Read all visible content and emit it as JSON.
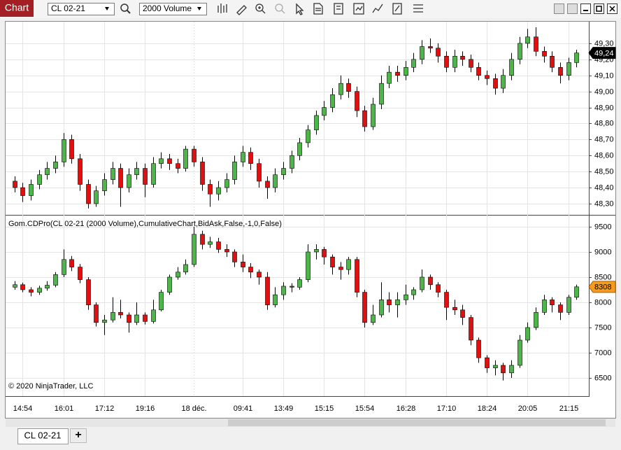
{
  "toolbar": {
    "title": "Chart",
    "instrument": "CL 02-21",
    "interval": "2000 Volume"
  },
  "tabs": {
    "active": "CL 02-21",
    "add": "+"
  },
  "chart_data": [
    {
      "type": "candlestick",
      "open": [
        48.44,
        48.4,
        48.35,
        48.42,
        48.48,
        48.52,
        48.56,
        48.7,
        48.58,
        48.42,
        48.3,
        48.38,
        48.45,
        48.52,
        48.4,
        48.48,
        48.52,
        48.42,
        48.55,
        48.58,
        48.55,
        48.52,
        48.64,
        48.56,
        48.42,
        48.36,
        48.4,
        48.45,
        48.56,
        48.62,
        48.55,
        48.44,
        48.4,
        48.48,
        48.52,
        48.6,
        48.68,
        48.76,
        48.85,
        48.9,
        48.98,
        49.05,
        49.0,
        48.88,
        48.78,
        48.92,
        49.05,
        49.12,
        49.1,
        49.15,
        49.2,
        49.28,
        49.27,
        49.22,
        49.15,
        49.22,
        49.2,
        49.15,
        49.1,
        49.08,
        49.02,
        49.1,
        49.2,
        49.3,
        49.34,
        49.25,
        49.22,
        49.15,
        49.1,
        49.18
      ],
      "high": [
        48.47,
        48.43,
        48.45,
        48.51,
        48.56,
        48.6,
        48.74,
        48.73,
        48.61,
        48.45,
        48.41,
        48.49,
        48.56,
        48.55,
        48.52,
        48.56,
        48.55,
        48.59,
        48.62,
        48.61,
        48.58,
        48.66,
        48.66,
        48.59,
        48.45,
        48.44,
        48.49,
        48.6,
        48.66,
        48.65,
        48.58,
        48.47,
        48.52,
        48.56,
        48.63,
        48.71,
        48.79,
        48.88,
        48.94,
        49.02,
        49.1,
        49.08,
        49.03,
        48.91,
        48.96,
        49.1,
        49.16,
        49.16,
        49.19,
        49.24,
        49.32,
        49.33,
        49.3,
        49.25,
        49.26,
        49.25,
        49.23,
        49.18,
        49.13,
        49.11,
        49.14,
        49.24,
        49.34,
        49.39,
        49.4,
        49.28,
        49.25,
        49.18,
        49.21,
        49.26
      ],
      "low": [
        48.37,
        48.31,
        48.32,
        48.39,
        48.45,
        48.49,
        48.53,
        48.55,
        48.38,
        48.27,
        48.28,
        48.35,
        48.42,
        48.28,
        48.37,
        48.45,
        48.34,
        48.4,
        48.52,
        48.51,
        48.49,
        48.5,
        48.53,
        48.38,
        48.28,
        48.32,
        48.37,
        48.42,
        48.53,
        48.51,
        48.4,
        48.33,
        48.37,
        48.45,
        48.49,
        48.57,
        48.65,
        48.73,
        48.82,
        48.87,
        48.95,
        48.96,
        48.84,
        48.75,
        48.76,
        48.89,
        49.02,
        49.06,
        49.07,
        49.12,
        49.17,
        49.24,
        49.18,
        49.12,
        49.12,
        49.16,
        49.12,
        49.07,
        49.04,
        48.98,
        48.99,
        49.07,
        49.17,
        49.27,
        49.22,
        49.18,
        49.12,
        49.05,
        49.07,
        49.15
      ],
      "close": [
        48.4,
        48.35,
        48.42,
        48.48,
        48.52,
        48.56,
        48.7,
        48.58,
        48.42,
        48.3,
        48.38,
        48.45,
        48.52,
        48.4,
        48.48,
        48.52,
        48.42,
        48.55,
        48.58,
        48.55,
        48.52,
        48.64,
        48.56,
        48.42,
        48.36,
        48.4,
        48.45,
        48.56,
        48.62,
        48.55,
        48.44,
        48.4,
        48.48,
        48.52,
        48.6,
        48.68,
        48.76,
        48.85,
        48.9,
        48.98,
        49.05,
        49.0,
        48.88,
        48.78,
        48.92,
        49.05,
        49.12,
        49.1,
        49.15,
        49.2,
        49.28,
        49.27,
        49.22,
        49.15,
        49.22,
        49.2,
        49.15,
        49.1,
        49.08,
        49.02,
        49.1,
        49.2,
        49.3,
        49.34,
        49.25,
        49.22,
        49.15,
        49.1,
        49.18,
        49.24
      ],
      "up_color": "#4cb648",
      "down_color": "#e01010",
      "ylim": [
        48.23,
        49.435
      ],
      "yticks": [
        {
          "value": 48.3,
          "label": "48,30"
        },
        {
          "value": 48.4,
          "label": "48,40"
        },
        {
          "value": 48.5,
          "label": "48,50"
        },
        {
          "value": 48.6,
          "label": "48,60"
        },
        {
          "value": 48.7,
          "label": "48,70"
        },
        {
          "value": 48.8,
          "label": "48,80"
        },
        {
          "value": 48.9,
          "label": "48,90"
        },
        {
          "value": 49.0,
          "label": "49,00"
        },
        {
          "value": 49.1,
          "label": "49,10"
        },
        {
          "value": 49.2,
          "label": "49,20"
        },
        {
          "value": 49.3,
          "label": "49,30"
        }
      ],
      "grid": true,
      "last_value": {
        "value": 49.24,
        "label": "49,24"
      },
      "last_color": "#000000"
    },
    {
      "type": "candlestick",
      "title": "Gom.CDPro(CL 02-21 (2000 Volume),CumulativeChart,BidAsk,False,-1,0,False)",
      "annotation": "© 2020 NinjaTrader, LLC",
      "categories": [
        null,
        "14:54",
        null,
        null,
        null,
        null,
        "16:01",
        null,
        null,
        null,
        null,
        "17:12",
        null,
        null,
        null,
        null,
        "19:16",
        null,
        null,
        null,
        null,
        null,
        "18 déc.",
        null,
        null,
        null,
        null,
        null,
        "09:41",
        null,
        null,
        null,
        null,
        "13:49",
        null,
        null,
        null,
        null,
        "15:15",
        null,
        null,
        null,
        null,
        "15:54",
        null,
        null,
        null,
        null,
        "16:28",
        null,
        null,
        null,
        null,
        "17:10",
        null,
        null,
        null,
        null,
        "18:24",
        null,
        null,
        null,
        null,
        "20:05",
        null,
        null,
        null,
        null,
        "21:15",
        null
      ],
      "open": [
        8300,
        8350,
        8250,
        8200,
        8280,
        8340,
        8550,
        8850,
        8700,
        8450,
        7950,
        7600,
        7650,
        7800,
        7750,
        7600,
        7750,
        7620,
        7850,
        8200,
        8500,
        8600,
        8750,
        9350,
        9150,
        9200,
        9050,
        9000,
        8800,
        8700,
        8600,
        8500,
        7950,
        8150,
        8320,
        8300,
        8450,
        9000,
        9050,
        8900,
        8700,
        8650,
        8850,
        8200,
        7600,
        7750,
        8050,
        7950,
        8050,
        8150,
        8250,
        8500,
        8350,
        8200,
        7900,
        7850,
        7700,
        7250,
        6900,
        6700,
        6750,
        6600,
        6750,
        7250,
        7500,
        7800,
        8050,
        7950,
        7800,
        8100
      ],
      "high": [
        8420,
        8390,
        8300,
        8330,
        8420,
        8600,
        9050,
        8920,
        8760,
        8500,
        8000,
        7750,
        8100,
        8050,
        7800,
        8000,
        7800,
        8050,
        8250,
        8550,
        8700,
        8850,
        9500,
        9420,
        9300,
        9280,
        9150,
        9050,
        8950,
        8780,
        8650,
        8600,
        8300,
        8400,
        8380,
        8500,
        9150,
        9150,
        9100,
        8950,
        8800,
        8900,
        8900,
        8250,
        7950,
        8400,
        8200,
        8200,
        8350,
        8300,
        8650,
        8550,
        8400,
        8250,
        8050,
        7950,
        7750,
        7300,
        6950,
        6850,
        6800,
        6850,
        7350,
        7600,
        7900,
        8150,
        8100,
        8000,
        8150,
        8350
      ],
      "low": [
        8250,
        8200,
        8120,
        8150,
        8230,
        8300,
        8500,
        8620,
        8380,
        7850,
        7520,
        7350,
        7600,
        7680,
        7400,
        7550,
        7560,
        7580,
        7820,
        8150,
        8450,
        8550,
        8700,
        9050,
        9080,
        8980,
        8900,
        8700,
        8600,
        8480,
        8350,
        7850,
        7900,
        8050,
        8200,
        8250,
        8400,
        8850,
        8750,
        8550,
        8450,
        8550,
        8100,
        7500,
        7550,
        7700,
        7800,
        7700,
        7950,
        8050,
        8200,
        8250,
        8100,
        7650,
        7750,
        7550,
        7150,
        6800,
        6600,
        6550,
        6450,
        6500,
        6700,
        7200,
        7450,
        7750,
        7800,
        7650,
        7750,
        8050
      ],
      "close": [
        8350,
        8250,
        8200,
        8280,
        8340,
        8550,
        8850,
        8700,
        8450,
        7950,
        7600,
        7650,
        7800,
        7750,
        7600,
        7750,
        7620,
        7850,
        8200,
        8500,
        8600,
        8750,
        9350,
        9150,
        9200,
        9050,
        9000,
        8800,
        8700,
        8600,
        8500,
        7950,
        8150,
        8320,
        8300,
        8450,
        9000,
        9050,
        8900,
        8700,
        8650,
        8850,
        8200,
        7600,
        7750,
        8050,
        7950,
        8050,
        8150,
        8250,
        8500,
        8350,
        8200,
        7900,
        7850,
        7700,
        7250,
        6900,
        6700,
        6750,
        6600,
        6750,
        7250,
        7500,
        7800,
        8050,
        7950,
        7800,
        8100,
        8308
      ],
      "up_color": "#4cb648",
      "down_color": "#e01010",
      "ylim": [
        6139,
        9708
      ],
      "yticks": [
        6500,
        7000,
        7500,
        8000,
        8500,
        9000,
        9500
      ],
      "grid": true,
      "last_value": 8308,
      "last_color": "#f59b1f"
    }
  ]
}
